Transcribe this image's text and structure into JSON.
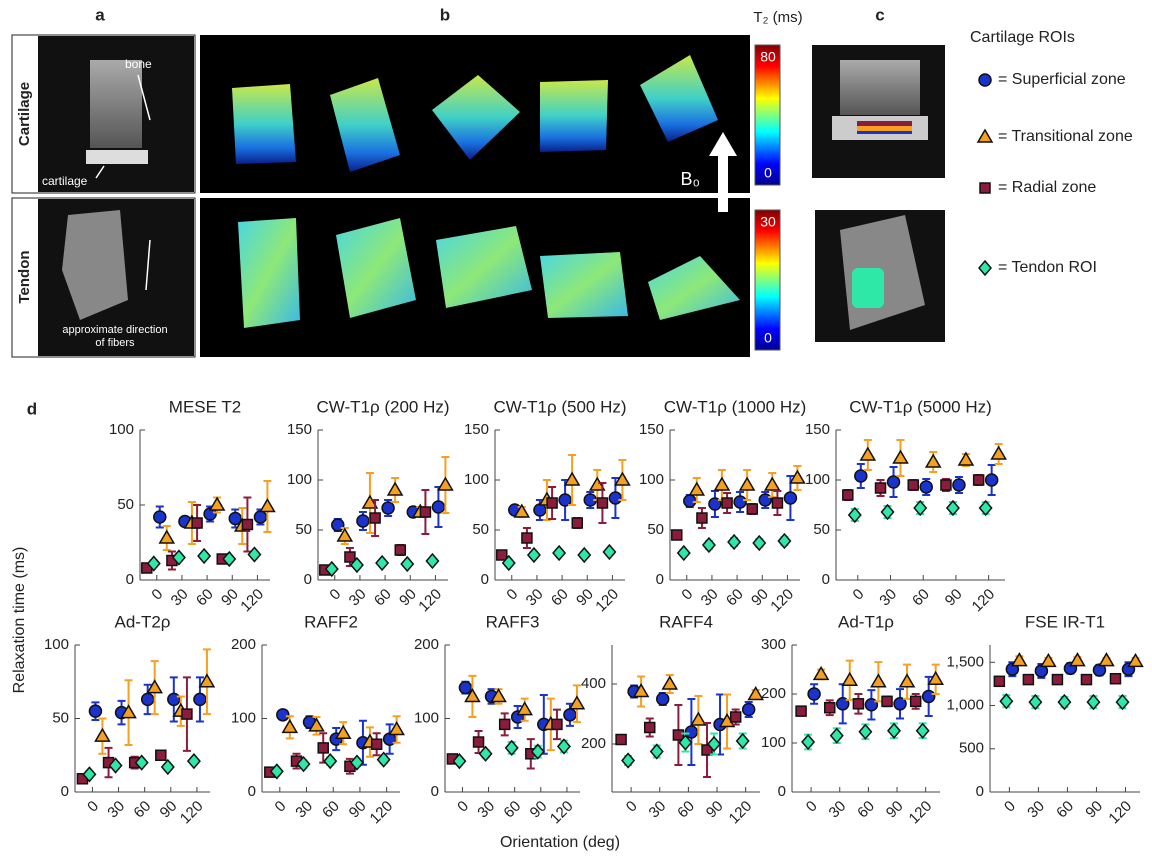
{
  "panels": {
    "a": "a",
    "b": "b",
    "c": "c",
    "d": "d"
  },
  "rows": {
    "cartilage": "Cartilage",
    "tendon": "Tendon"
  },
  "annotations": {
    "bone": "bone",
    "cartilage": "cartilage",
    "fibers": [
      "approximate direction",
      "of fibers"
    ],
    "field": "B₀"
  },
  "colorbar_title": "T₂ (ms)",
  "colorbars": [
    {
      "ticks": [
        80,
        0
      ]
    },
    {
      "ticks": [
        30,
        0
      ]
    }
  ],
  "legend": {
    "title": "Cartilage ROIs",
    "items": [
      {
        "name": "= Superficial zone",
        "color": "#1a33cc",
        "marker": "circle"
      },
      {
        "name": "= Transitional zone",
        "color": "#f5a020",
        "marker": "triangle"
      },
      {
        "name": "= Radial zone",
        "color": "#8c1c3c",
        "marker": "square"
      },
      {
        "name": "= Tendon ROI",
        "color": "#2ee8a8",
        "marker": "diamond"
      }
    ]
  },
  "shared": {
    "ylabel": "Relaxation time (ms)",
    "xlabel": "Orientation (deg)"
  },
  "chart_data": [
    {
      "type": "errorbar",
      "title": "MESE T2",
      "x": [
        0,
        30,
        60,
        90,
        120
      ],
      "xlim": [
        -20,
        135
      ],
      "xticks": [
        0,
        30,
        60,
        90,
        120
      ],
      "ylim": [
        0,
        100
      ],
      "yticks": [
        0,
        50,
        100
      ],
      "series": [
        {
          "values": [
            42,
            39,
            44,
            41,
            42
          ],
          "errors": [
            7,
            3,
            5,
            6,
            5
          ]
        },
        {
          "values": [
            28,
            38,
            50,
            36,
            49
          ],
          "errors": [
            8,
            14,
            5,
            12,
            17
          ]
        },
        {
          "values": [
            8,
            13,
            38,
            14,
            37
          ],
          "errors": [
            2,
            6,
            12,
            2,
            18
          ]
        },
        {
          "values": [
            11,
            15,
            16,
            14,
            17
          ],
          "errors": [
            2,
            2,
            2,
            2,
            2
          ]
        }
      ]
    },
    {
      "type": "errorbar",
      "title": "CW-T1ρ (200 Hz)",
      "x": [
        0,
        30,
        60,
        90,
        120
      ],
      "xlim": [
        -20,
        135
      ],
      "xticks": [
        0,
        30,
        60,
        90,
        120
      ],
      "ylim": [
        0,
        150
      ],
      "yticks": [
        0,
        50,
        100,
        150
      ],
      "series": [
        {
          "values": [
            55,
            59,
            72,
            68,
            73
          ],
          "errors": [
            6,
            9,
            8,
            5,
            20
          ]
        },
        {
          "values": [
            44,
            77,
            90,
            68,
            95
          ],
          "errors": [
            8,
            30,
            12,
            5,
            28
          ]
        },
        {
          "values": [
            10,
            23,
            62,
            30,
            68
          ],
          "errors": [
            3,
            9,
            18,
            5,
            22
          ]
        },
        {
          "values": [
            11,
            15,
            17,
            16,
            19
          ],
          "errors": [
            2,
            2,
            2,
            2,
            2
          ]
        }
      ]
    },
    {
      "type": "errorbar",
      "title": "CW-T1ρ (500 Hz)",
      "x": [
        0,
        30,
        60,
        90,
        120
      ],
      "xlim": [
        -20,
        135
      ],
      "xticks": [
        0,
        30,
        60,
        90,
        120
      ],
      "ylim": [
        0,
        150
      ],
      "yticks": [
        0,
        50,
        100,
        150
      ],
      "series": [
        {
          "values": [
            70,
            70,
            80,
            80,
            82
          ],
          "errors": [
            4,
            10,
            20,
            8,
            20
          ]
        },
        {
          "values": [
            68,
            80,
            100,
            95,
            100
          ],
          "errors": [
            5,
            20,
            25,
            15,
            20
          ]
        },
        {
          "values": [
            25,
            42,
            77,
            57,
            77
          ],
          "errors": [
            2,
            10,
            16,
            5,
            20
          ]
        },
        {
          "values": [
            17,
            25,
            27,
            25,
            28
          ],
          "errors": [
            3,
            3,
            3,
            3,
            3
          ]
        }
      ]
    },
    {
      "type": "errorbar",
      "title": "CW-T1ρ (1000 Hz)",
      "x": [
        0,
        30,
        60,
        90,
        120
      ],
      "xlim": [
        -20,
        135
      ],
      "xticks": [
        0,
        30,
        60,
        90,
        120
      ],
      "ylim": [
        0,
        150
      ],
      "yticks": [
        0,
        50,
        100,
        150
      ],
      "series": [
        {
          "values": [
            79,
            76,
            78,
            80,
            82
          ],
          "errors": [
            6,
            13,
            10,
            8,
            22
          ]
        },
        {
          "values": [
            90,
            95,
            95,
            95,
            102
          ],
          "errors": [
            12,
            15,
            15,
            12,
            12
          ]
        },
        {
          "values": [
            45,
            62,
            77,
            71,
            77
          ],
          "errors": [
            2,
            10,
            10,
            5,
            12
          ]
        },
        {
          "values": [
            27,
            35,
            38,
            37,
            39
          ],
          "errors": [
            3,
            4,
            4,
            4,
            4
          ]
        }
      ]
    },
    {
      "type": "errorbar",
      "title": "CW-T1ρ (5000 Hz)",
      "x": [
        0,
        30,
        60,
        90,
        120
      ],
      "xlim": [
        -20,
        135
      ],
      "xticks": [
        0,
        30,
        60,
        90,
        120
      ],
      "ylim": [
        0,
        150
      ],
      "yticks": [
        0,
        50,
        100,
        150
      ],
      "series": [
        {
          "values": [
            104,
            98,
            93,
            95,
            100
          ],
          "errors": [
            12,
            15,
            8,
            8,
            15
          ]
        },
        {
          "values": [
            125,
            122,
            118,
            120,
            126
          ],
          "errors": [
            15,
            18,
            10,
            6,
            10
          ]
        },
        {
          "values": [
            85,
            92,
            95,
            95,
            100
          ],
          "errors": [
            5,
            8,
            5,
            6,
            5
          ]
        },
        {
          "values": [
            65,
            68,
            72,
            72,
            72
          ],
          "errors": [
            6,
            6,
            6,
            6,
            6
          ]
        }
      ]
    },
    {
      "type": "errorbar",
      "title": "Ad-T2ρ",
      "x": [
        0,
        30,
        60,
        90,
        120
      ],
      "xlim": [
        -20,
        135
      ],
      "xticks": [
        0,
        30,
        60,
        90,
        120
      ],
      "ylim": [
        0,
        100
      ],
      "yticks": [
        0,
        50,
        100
      ],
      "series": [
        {
          "values": [
            55,
            54,
            63,
            63,
            63
          ],
          "errors": [
            6,
            8,
            10,
            15,
            15
          ]
        },
        {
          "values": [
            38,
            54,
            71,
            55,
            75
          ],
          "errors": [
            12,
            22,
            18,
            10,
            22
          ]
        },
        {
          "values": [
            9,
            20,
            20,
            25,
            53
          ],
          "errors": [
            1,
            10,
            4,
            3,
            25
          ]
        },
        {
          "values": [
            12,
            18,
            20,
            17,
            21
          ],
          "errors": [
            2,
            2,
            2,
            2,
            2
          ]
        }
      ]
    },
    {
      "type": "errorbar",
      "title": "RAFF2",
      "x": [
        0,
        30,
        60,
        90,
        120
      ],
      "xlim": [
        -20,
        135
      ],
      "xticks": [
        0,
        30,
        60,
        90,
        120
      ],
      "ylim": [
        0,
        200
      ],
      "yticks": [
        0,
        100,
        200
      ],
      "series": [
        {
          "values": [
            105,
            95,
            72,
            67,
            72
          ],
          "errors": [
            5,
            8,
            15,
            30,
            20
          ]
        },
        {
          "values": [
            88,
            90,
            80,
            68,
            85
          ],
          "errors": [
            15,
            12,
            15,
            20,
            18
          ]
        },
        {
          "values": [
            27,
            42,
            60,
            35,
            65
          ],
          "errors": [
            3,
            10,
            20,
            10,
            15
          ]
        },
        {
          "values": [
            28,
            38,
            42,
            40,
            44
          ],
          "errors": [
            4,
            5,
            5,
            5,
            5
          ]
        }
      ]
    },
    {
      "type": "errorbar",
      "title": "RAFF3",
      "x": [
        0,
        30,
        60,
        90,
        120
      ],
      "xlim": [
        -20,
        135
      ],
      "xticks": [
        0,
        30,
        60,
        90,
        120
      ],
      "ylim": [
        0,
        200
      ],
      "yticks": [
        0,
        100,
        200
      ],
      "series": [
        {
          "values": [
            142,
            130,
            102,
            92,
            105
          ],
          "errors": [
            8,
            10,
            15,
            40,
            15
          ]
        },
        {
          "values": [
            130,
            130,
            112,
            92,
            120
          ],
          "errors": [
            28,
            10,
            15,
            35,
            25
          ]
        },
        {
          "values": [
            45,
            68,
            92,
            52,
            92
          ],
          "errors": [
            3,
            15,
            15,
            20,
            20
          ]
        },
        {
          "values": [
            42,
            52,
            60,
            55,
            62
          ],
          "errors": [
            3,
            5,
            8,
            8,
            8
          ]
        }
      ]
    },
    {
      "type": "errorbar",
      "title": "RAFF4",
      "x": [
        0,
        30,
        60,
        90,
        120
      ],
      "xlim": [
        -20,
        135
      ],
      "xticks": [
        0,
        30,
        60,
        90,
        120
      ],
      "ylim": [
        40,
        530
      ],
      "yticks": [
        200,
        400
      ],
      "series": [
        {
          "values": [
            375,
            350,
            240,
            265,
            315
          ],
          "errors": [
            20,
            20,
            110,
            100,
            25
          ]
        },
        {
          "values": [
            375,
            400,
            280,
            275,
            365
          ],
          "errors": [
            50,
            30,
            80,
            90,
            15
          ]
        },
        {
          "values": [
            215,
            255,
            230,
            180,
            290
          ],
          "errors": [
            5,
            30,
            100,
            90,
            25
          ]
        },
        {
          "values": [
            145,
            175,
            205,
            200,
            210
          ],
          "errors": [
            15,
            20,
            30,
            35,
            25
          ]
        }
      ]
    },
    {
      "type": "errorbar",
      "title": "Ad-T1ρ",
      "x": [
        0,
        30,
        60,
        90,
        120
      ],
      "xlim": [
        -20,
        135
      ],
      "xticks": [
        0,
        30,
        60,
        90,
        120
      ],
      "ylim": [
        0,
        300
      ],
      "yticks": [
        0,
        100,
        200,
        300
      ],
      "series": [
        {
          "values": [
            200,
            180,
            178,
            180,
            195
          ],
          "errors": [
            20,
            40,
            30,
            30,
            40
          ]
        },
        {
          "values": [
            240,
            228,
            225,
            225,
            230
          ],
          "errors": [
            10,
            40,
            40,
            35,
            30
          ]
        },
        {
          "values": [
            165,
            172,
            180,
            185,
            185
          ],
          "errors": [
            5,
            15,
            20,
            10,
            15
          ]
        },
        {
          "values": [
            102,
            115,
            123,
            125,
            125
          ],
          "errors": [
            15,
            15,
            15,
            15,
            15
          ]
        }
      ]
    },
    {
      "type": "errorbar",
      "title": "FSE IR-T1",
      "x": [
        0,
        30,
        60,
        90,
        120
      ],
      "xlim": [
        -20,
        135
      ],
      "xticks": [
        0,
        30,
        60,
        90,
        120
      ],
      "ylim": [
        0,
        1700
      ],
      "yticks": [
        0,
        500,
        {
          "value": 1000,
          "label": "1,000"
        },
        {
          "value": 1500,
          "label": "1,500"
        }
      ],
      "series": [
        {
          "values": [
            1420,
            1400,
            1430,
            1410,
            1420
          ],
          "errors": [
            80,
            80,
            60,
            60,
            80
          ]
        },
        {
          "values": [
            1520,
            1510,
            1520,
            1520,
            1510
          ],
          "errors": [
            50,
            40,
            40,
            30,
            40
          ]
        },
        {
          "values": [
            1280,
            1300,
            1300,
            1300,
            1310
          ],
          "errors": [
            20,
            20,
            20,
            20,
            20
          ]
        },
        {
          "values": [
            1050,
            1040,
            1040,
            1040,
            1040
          ],
          "errors": [
            70,
            70,
            60,
            70,
            70
          ]
        }
      ]
    }
  ]
}
